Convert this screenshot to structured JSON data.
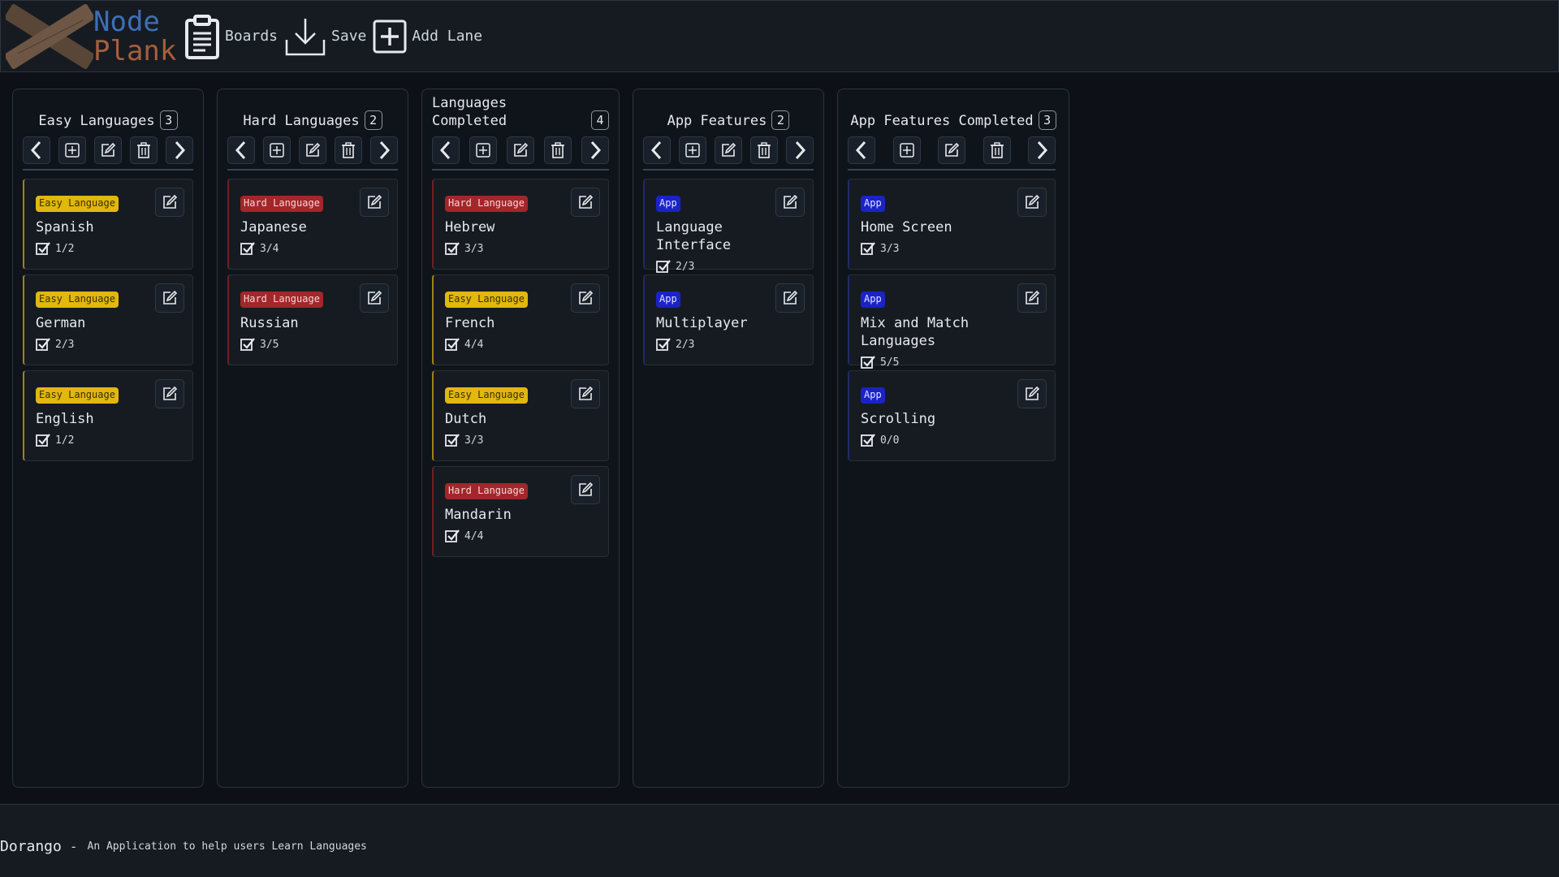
{
  "header": {
    "logo_top": "Node",
    "logo_bottom": "Plank",
    "boards_label": "Boards",
    "save_label": "Save",
    "add_lane_label": "Add Lane"
  },
  "lanes": [
    {
      "title": "Easy Languages",
      "count": "3",
      "cards": [
        {
          "tag": "Easy Language",
          "title": "Spanish",
          "progress": "1/2"
        },
        {
          "tag": "Easy Language",
          "title": "German",
          "progress": "2/3"
        },
        {
          "tag": "Easy Language",
          "title": "English",
          "progress": "1/2"
        }
      ]
    },
    {
      "title": "Hard Languages",
      "count": "2",
      "cards": [
        {
          "tag": "Hard Language",
          "title": "Japanese",
          "progress": "3/4"
        },
        {
          "tag": "Hard Language",
          "title": "Russian",
          "progress": "3/5"
        }
      ]
    },
    {
      "title": "Languages Completed",
      "count": "4",
      "cards": [
        {
          "tag": "Hard Language",
          "title": "Hebrew",
          "progress": "3/3"
        },
        {
          "tag": "Easy Language",
          "title": "French",
          "progress": "4/4"
        },
        {
          "tag": "Easy Language",
          "title": "Dutch",
          "progress": "3/3"
        },
        {
          "tag": "Hard Language",
          "title": "Mandarin",
          "progress": "4/4"
        }
      ]
    },
    {
      "title": "App Features",
      "count": "2",
      "cards": [
        {
          "tag": "App",
          "title": "Language Interface",
          "progress": "2/3"
        },
        {
          "tag": "App",
          "title": "Multiplayer",
          "progress": "2/3"
        }
      ]
    },
    {
      "title": "App Features Completed",
      "count": "3",
      "cards": [
        {
          "tag": "App",
          "title": "Home Screen",
          "progress": "3/3"
        },
        {
          "tag": "App",
          "title": "Mix and Match Languages",
          "progress": "5/5"
        },
        {
          "tag": "App",
          "title": "Scrolling",
          "progress": "0/0"
        }
      ]
    }
  ],
  "footer": {
    "app_name": "Dorango",
    "separator": "-",
    "description": "An Application to help users Learn Languages"
  },
  "colors": {
    "easy_tag": "#e2b70e",
    "hard_tag": "#a3262a",
    "app_tag": "#1b22c7",
    "logo_node": "#3d6fb6",
    "logo_plank": "#a85e3c"
  }
}
